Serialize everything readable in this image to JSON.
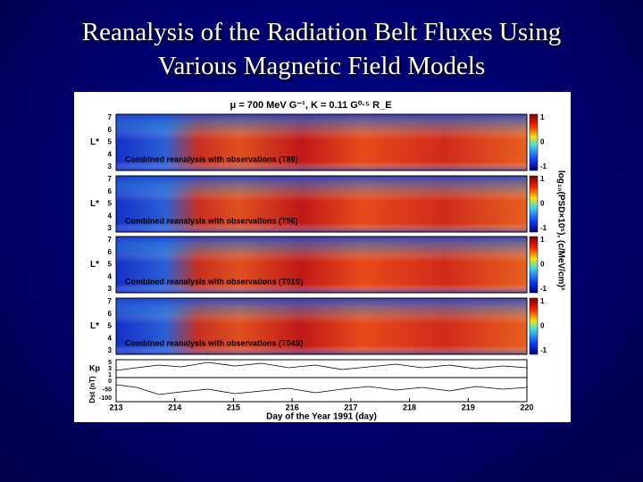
{
  "header": {
    "title_lines": [
      "Reanalysis of the Radiation Belt Fluxes Using",
      "Various Magnetic Field Models"
    ]
  },
  "figure": {
    "title": "μ = 700 MeV G⁻¹, K = 0.11 G⁰·⁵ R_E",
    "panels": [
      {
        "annotation": "Combined reanalysis with observations (T89)"
      },
      {
        "annotation": "Combined reanalysis with observations (T96)"
      },
      {
        "annotation": "Combined reanalysis with observations (T01S)"
      },
      {
        "annotation": "Combined reanalysis with observations (T04S)"
      }
    ],
    "y_label": "L*",
    "y_ticks": [
      "7",
      "6",
      "5",
      "4",
      "3"
    ],
    "colorbar_ticks": [
      "1",
      "0",
      "-1"
    ],
    "colorbar_label": "log₁₀(PSD×10⁵), (c/MeV/cm)³",
    "kp_label": "Kp",
    "kp_ticks": [
      "5",
      "3",
      "1"
    ],
    "dst_label": "Dst (nT)",
    "dst_ticks": [
      "0",
      "-50",
      "-100"
    ],
    "x_ticks": [
      "213",
      "214",
      "215",
      "216",
      "217",
      "218",
      "219",
      "220"
    ],
    "x_label": "Day of the Year 1991 (day)"
  }
}
